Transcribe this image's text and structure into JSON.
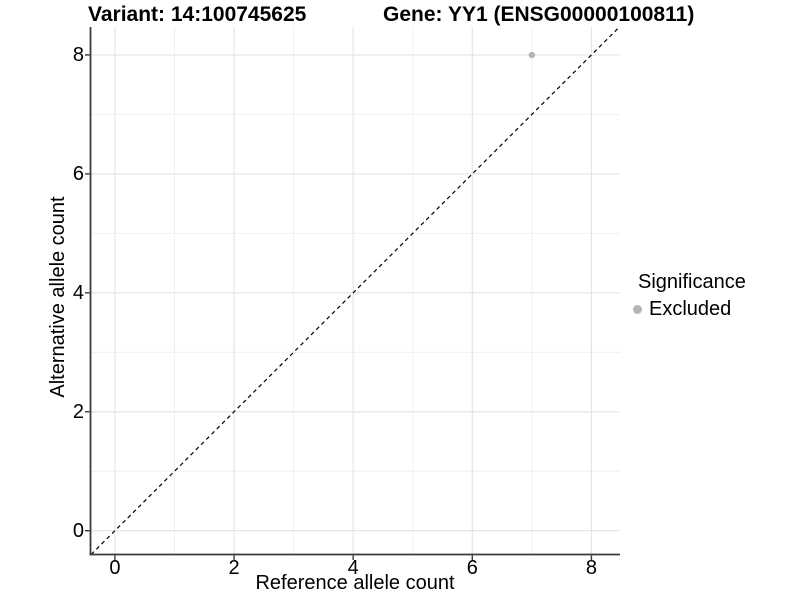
{
  "chart_data": {
    "type": "scatter",
    "title_left": "Variant: 14:100745625",
    "title_right": "Gene: YY1 (ENSG00000100811)",
    "xlabel": "Reference allele count",
    "ylabel": "Alternative allele count",
    "xlim": [
      -0.41,
      8.48
    ],
    "ylim": [
      -0.4,
      8.47
    ],
    "x_major_ticks": [
      0,
      2,
      4,
      6,
      8
    ],
    "y_major_ticks": [
      0,
      2,
      4,
      6,
      8
    ],
    "x_minor_ticks": [
      1,
      3,
      5,
      7
    ],
    "y_minor_ticks": [
      1,
      3,
      5,
      7
    ],
    "grid": true,
    "points": [
      {
        "x": 7,
        "y": 8,
        "series": "Excluded"
      }
    ],
    "reference_line": {
      "type": "identity",
      "slope": 1,
      "intercept": 0,
      "style": "dashed",
      "color": "#000000"
    },
    "legend": {
      "position": "right",
      "title": "Significance",
      "items": [
        {
          "label": "Excluded",
          "color": "#b5b5b5"
        }
      ]
    },
    "colors": {
      "background": "#ffffff",
      "grid_major": "#e3e3e3",
      "grid_minor": "#efefef",
      "axis": "#3a3a3a",
      "point": "#b5b5b5",
      "text": "#000000"
    }
  }
}
